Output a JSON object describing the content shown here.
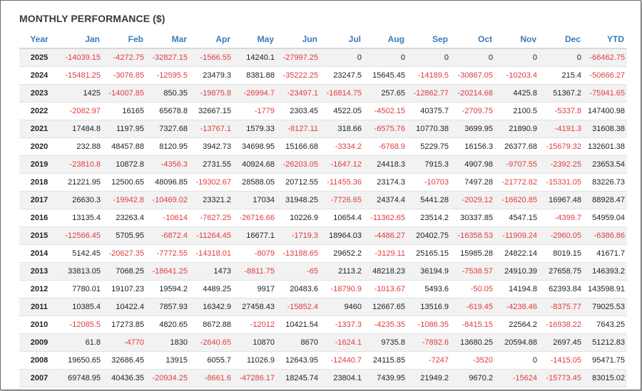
{
  "title": "MONTHLY PERFORMANCE ($)",
  "columns": [
    "Year",
    "Jan",
    "Feb",
    "Mar",
    "Apr",
    "May",
    "Jun",
    "Jul",
    "Aug",
    "Sep",
    "Oct",
    "Nov",
    "Dec",
    "YTD"
  ],
  "rows": [
    [
      "2025",
      "-14039.15",
      "-4272.75",
      "-32827.15",
      "-1566.55",
      "14240.1",
      "-27997.25",
      "0",
      "0",
      "0",
      "0",
      "0",
      "0",
      "-66462.75"
    ],
    [
      "2024",
      "-15481.25",
      "-3076.85",
      "-12595.5",
      "23479.3",
      "8381.88",
      "-35222.25",
      "23247.5",
      "15645.45",
      "-14189.5",
      "-30867.05",
      "-10203.4",
      "215.4",
      "-50666.27"
    ],
    [
      "2023",
      "1425",
      "-14007.85",
      "850.35",
      "-19875.8",
      "-26994.7",
      "-23497.1",
      "-16814.75",
      "257.65",
      "-12862.77",
      "-20214.68",
      "4425.8",
      "51367.2",
      "-75941.65"
    ],
    [
      "2022",
      "-2082.97",
      "16165",
      "65678.8",
      "32667.15",
      "-1779",
      "2303.45",
      "4522.05",
      "-4502.15",
      "40375.7",
      "-2709.75",
      "2100.5",
      "-5337.8",
      "147400.98"
    ],
    [
      "2021",
      "17484.8",
      "1197.95",
      "7327.68",
      "-13767.1",
      "1579.33",
      "-8127.11",
      "318.66",
      "-6575.76",
      "10770.38",
      "3699.95",
      "21890.9",
      "-4191.3",
      "31608.38"
    ],
    [
      "2020",
      "232.88",
      "48457.88",
      "8120.95",
      "3942.73",
      "34698.95",
      "15166.68",
      "-3334.2",
      "-6768.9",
      "5229.75",
      "16156.3",
      "26377.68",
      "-15679.32",
      "132601.38"
    ],
    [
      "2019",
      "-23810.8",
      "10872.8",
      "-4356.3",
      "2731.55",
      "40924.68",
      "-26203.05",
      "-1647.12",
      "24418.3",
      "7915.3",
      "4907.98",
      "-9707.55",
      "-2392.25",
      "23653.54"
    ],
    [
      "2018",
      "21221.95",
      "12500.65",
      "48096.85",
      "-19302.67",
      "28588.05",
      "20712.55",
      "-11455.36",
      "23174.3",
      "-10703",
      "7497.28",
      "-21772.82",
      "-15331.05",
      "83226.73"
    ],
    [
      "2017",
      "26630.3",
      "-19942.8",
      "-10469.02",
      "23321.2",
      "17034",
      "31948.25",
      "-7726.65",
      "24374.4",
      "5441.28",
      "-2029.12",
      "-16620.85",
      "16967.48",
      "88928.47"
    ],
    [
      "2016",
      "13135.4",
      "23263.4",
      "-10614",
      "-7627.25",
      "-26716.66",
      "10226.9",
      "10654.4",
      "-11362.65",
      "23514.2",
      "30337.85",
      "4547.15",
      "-4399.7",
      "54959.04"
    ],
    [
      "2015",
      "-12566.45",
      "5705.95",
      "-6872.4",
      "-11264.45",
      "16677.1",
      "-1719.3",
      "18964.03",
      "-4486.27",
      "20402.75",
      "-16358.53",
      "-11909.24",
      "-2960.05",
      "-6386.86"
    ],
    [
      "2014",
      "5142.45",
      "-20627.35",
      "-7772.55",
      "-14318.01",
      "-8079",
      "-13188.65",
      "29652.2",
      "-3129.11",
      "25165.15",
      "15985.28",
      "24822.14",
      "8019.15",
      "41671.7"
    ],
    [
      "2013",
      "33813.05",
      "7068.25",
      "-18641.25",
      "1473",
      "-8811.75",
      "-65",
      "2113.2",
      "48218.23",
      "36194.9",
      "-7538.57",
      "24910.39",
      "27658.75",
      "146393.2"
    ],
    [
      "2012",
      "7780.01",
      "19107.23",
      "19594.2",
      "4489.25",
      "9917",
      "20483.6",
      "-18790.9",
      "-1013.67",
      "5493.6",
      "-50.05",
      "14194.8",
      "62393.84",
      "143598.91"
    ],
    [
      "2011",
      "10385.4",
      "10422.4",
      "7857.93",
      "16342.9",
      "27458.43",
      "-15852.4",
      "9460",
      "12667.65",
      "13516.9",
      "-619.45",
      "-4238.46",
      "-8375.77",
      "79025.53"
    ],
    [
      "2010",
      "-12085.5",
      "17273.85",
      "4820.65",
      "8672.88",
      "-12012",
      "10421.54",
      "-1337.3",
      "-4235.35",
      "-1086.35",
      "-8415.15",
      "22564.2",
      "-16938.22",
      "7643.25"
    ],
    [
      "2009",
      "61.8",
      "-4770",
      "1830",
      "-2640.65",
      "10870",
      "8670",
      "-1624.1",
      "9735.8",
      "-7892.6",
      "13680.25",
      "20594.88",
      "2697.45",
      "51212.83"
    ],
    [
      "2008",
      "19650.65",
      "32686.45",
      "13915",
      "6055.7",
      "11026.9",
      "12643.95",
      "-12440.7",
      "24115.85",
      "-7247",
      "-3520",
      "0",
      "-1415.05",
      "95471.75"
    ],
    [
      "2007",
      "69748.95",
      "40436.35",
      "-20934.25",
      "-8661.6",
      "-47286.17",
      "18245.74",
      "23804.1",
      "7439.95",
      "21949.2",
      "9670.2",
      "-15624",
      "-15773.45",
      "83015.02"
    ]
  ]
}
